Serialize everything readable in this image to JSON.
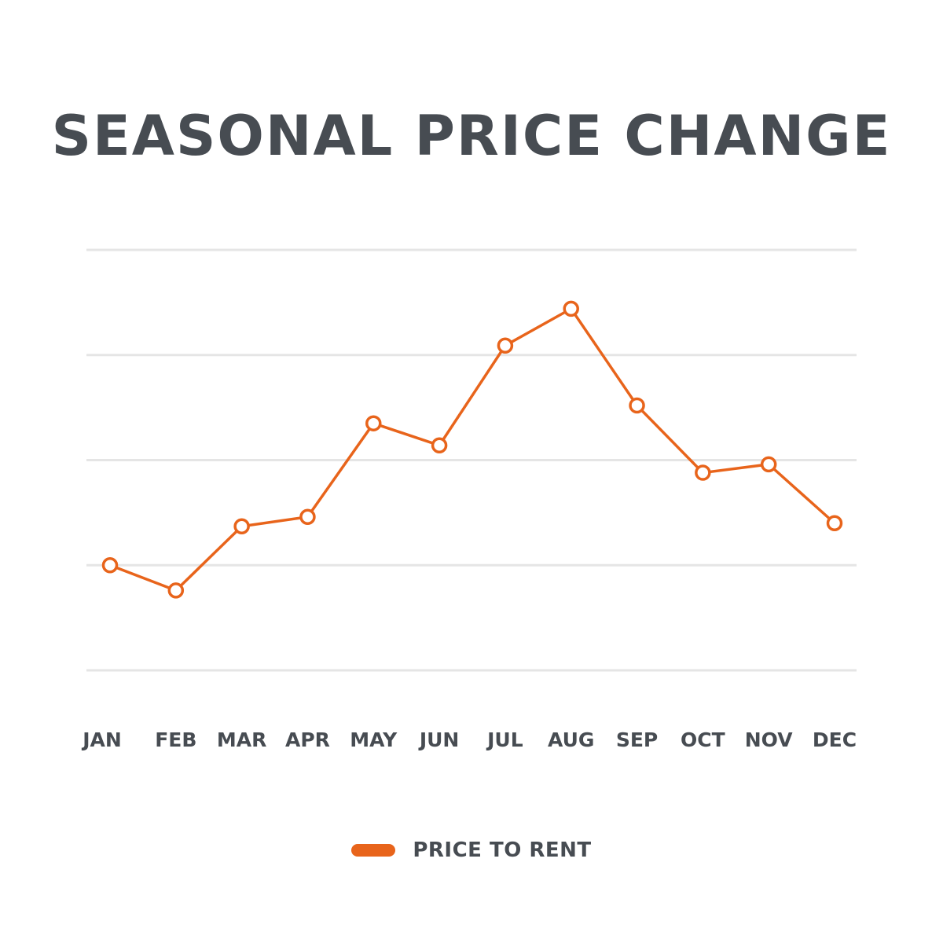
{
  "chart_data": {
    "type": "line",
    "title": "SEASONAL PRICE CHANGE",
    "categories": [
      "JAN",
      "FEB",
      "MAR",
      "APR",
      "MAY",
      "JUN",
      "JUL",
      "AUG",
      "SEP",
      "OCT",
      "NOV",
      "DEC"
    ],
    "series": [
      {
        "name": "PRICE TO RENT",
        "color": "#e8641b",
        "values": [
          1.0,
          0.76,
          1.37,
          1.46,
          2.35,
          2.14,
          3.09,
          3.44,
          2.52,
          1.88,
          1.96,
          1.4
        ]
      }
    ],
    "ylim": [
      0,
      4
    ],
    "yticks_shown": false,
    "grid": true,
    "grid_color": "#e5e5e5",
    "text_color": "#474c52",
    "legend_position": "bottom-center"
  }
}
